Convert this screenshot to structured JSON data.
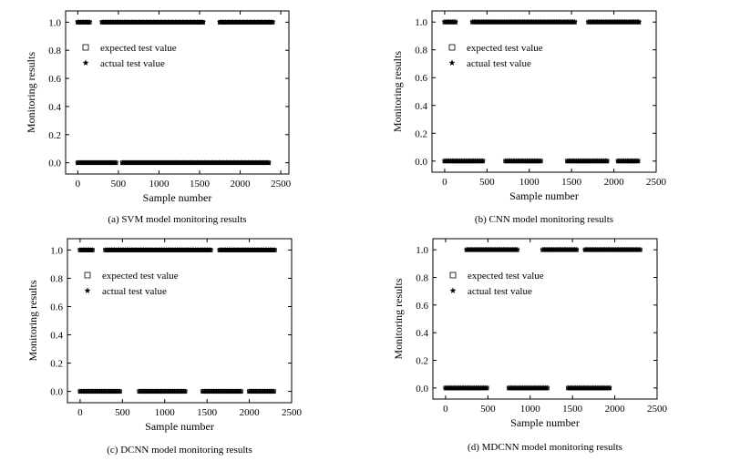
{
  "chart_data": [
    {
      "type": "scatter",
      "caption": "(a) SVM model monitoring results",
      "xlabel": "Sample  number",
      "ylabel": "Monitoring results",
      "xlim": [
        -150,
        2600
      ],
      "ylim": [
        -0.08,
        1.08
      ],
      "x_ticks": [
        "0",
        "500",
        "1000",
        "1500",
        "2000",
        "2500"
      ],
      "y_ticks": [
        "0.0",
        "0.2",
        "0.4",
        "0.6",
        "0.8",
        "1.0"
      ],
      "legend": [
        "expected test value",
        "actual test value"
      ],
      "legend_position": "upper-left",
      "series": [
        {
          "name": "expected test value",
          "marker": "square",
          "segments": [
            {
              "y": 1,
              "x": [
                [
                  0,
                  150
                ],
                [
                  300,
                  1550
                ],
                [
                  1750,
                  2400
                ]
              ]
            },
            {
              "y": 0,
              "x": [
                [
                  0,
                  480
                ],
                [
                  550,
                  2350
                ]
              ]
            }
          ]
        },
        {
          "name": "actual test value",
          "marker": "star",
          "segments": [
            {
              "y": 1,
              "x": [
                [
                  0,
                  150
                ],
                [
                  300,
                  1550
                ],
                [
                  1750,
                  2400
                ]
              ]
            },
            {
              "y": 0,
              "x": [
                [
                  0,
                  480
                ],
                [
                  550,
                  2350
                ]
              ]
            }
          ]
        }
      ]
    },
    {
      "type": "scatter",
      "caption": "(b) CNN model monitoring results",
      "xlabel": "Sample number",
      "ylabel": "Monitoring results",
      "xlim": [
        -150,
        2500
      ],
      "ylim": [
        -0.08,
        1.08
      ],
      "x_ticks": [
        "0",
        "500",
        "1000",
        "1500",
        "2000",
        "2500"
      ],
      "y_ticks": [
        "0.0",
        "0.2",
        "0.4",
        "0.6",
        "0.8",
        "1.0"
      ],
      "legend": [
        "expected test value",
        "actual test value"
      ],
      "legend_position": "upper-left",
      "series": [
        {
          "name": "expected test value",
          "marker": "square",
          "segments": [
            {
              "y": 1,
              "x": [
                [
                  0,
                  130
                ],
                [
                  330,
                  1550
                ],
                [
                  1700,
                  2300
                ]
              ]
            },
            {
              "y": 0,
              "x": [
                [
                  0,
                  450
                ],
                [
                  720,
                  1150
                ],
                [
                  1450,
                  1920
                ],
                [
                  2050,
                  2300
                ]
              ]
            }
          ]
        },
        {
          "name": "actual test value",
          "marker": "star",
          "segments": [
            {
              "y": 1,
              "x": [
                [
                  0,
                  130
                ],
                [
                  330,
                  1550
                ],
                [
                  1700,
                  2300
                ]
              ]
            },
            {
              "y": 0,
              "x": [
                [
                  0,
                  450
                ],
                [
                  720,
                  1150
                ],
                [
                  1450,
                  1920
                ],
                [
                  2050,
                  2300
                ]
              ]
            }
          ]
        }
      ]
    },
    {
      "type": "scatter",
      "caption": "(c) DCNN model monitoring results",
      "xlabel": "Sample number",
      "ylabel": "Monitoring results",
      "xlim": [
        -150,
        2500
      ],
      "ylim": [
        -0.08,
        1.08
      ],
      "x_ticks": [
        "0",
        "500",
        "1000",
        "1500",
        "2000",
        "2500"
      ],
      "y_ticks": [
        "0.0",
        "0.2",
        "0.4",
        "0.6",
        "0.8",
        "1.0"
      ],
      "legend": [
        "expected test value",
        "actual test value"
      ],
      "legend_position": "upper-left",
      "series": [
        {
          "name": "expected test value",
          "marker": "square",
          "segments": [
            {
              "y": 1,
              "x": [
                [
                  0,
                  150
                ],
                [
                  300,
                  1550
                ],
                [
                  1650,
                  2300
                ]
              ]
            },
            {
              "y": 0,
              "x": [
                [
                  0,
                  480
                ],
                [
                  700,
                  1250
                ],
                [
                  1450,
                  1900
                ],
                [
                  2000,
                  2300
                ]
              ]
            }
          ]
        },
        {
          "name": "actual test value",
          "marker": "star",
          "segments": [
            {
              "y": 1,
              "x": [
                [
                  0,
                  150
                ],
                [
                  300,
                  1550
                ],
                [
                  1650,
                  2300
                ]
              ]
            },
            {
              "y": 0,
              "x": [
                [
                  0,
                  480
                ],
                [
                  700,
                  1250
                ],
                [
                  1450,
                  1900
                ],
                [
                  2000,
                  2300
                ]
              ]
            }
          ]
        }
      ]
    },
    {
      "type": "scatter",
      "caption": "(d) MDCNN model monitoring results",
      "xlabel": "Sample number",
      "ylabel": "Monitoring results",
      "xlim": [
        -150,
        2500
      ],
      "ylim": [
        -0.08,
        1.08
      ],
      "x_ticks": [
        "0",
        "500",
        "1000",
        "1500",
        "2000",
        "2500"
      ],
      "y_ticks": [
        "0.0",
        "0.2",
        "0.4",
        "0.6",
        "0.8",
        "1.0"
      ],
      "legend": [
        "expected test value",
        "actual test value"
      ],
      "legend_position": "upper-left",
      "series": [
        {
          "name": "expected test value",
          "marker": "square",
          "segments": [
            {
              "y": 1,
              "x": [
                [
                  250,
                  850
                ],
                [
                  1150,
                  1550
                ],
                [
                  1650,
                  2300
                ]
              ]
            },
            {
              "y": 0,
              "x": [
                [
                  0,
                  500
                ],
                [
                  750,
                  1200
                ],
                [
                  1450,
                  1950
                ]
              ]
            }
          ]
        },
        {
          "name": "actual test value",
          "marker": "star",
          "segments": [
            {
              "y": 1,
              "x": [
                [
                  250,
                  850
                ],
                [
                  1150,
                  1550
                ],
                [
                  1650,
                  2300
                ]
              ]
            },
            {
              "y": 0,
              "x": [
                [
                  0,
                  500
                ],
                [
                  750,
                  1200
                ],
                [
                  1450,
                  1950
                ]
              ]
            }
          ]
        }
      ]
    }
  ]
}
